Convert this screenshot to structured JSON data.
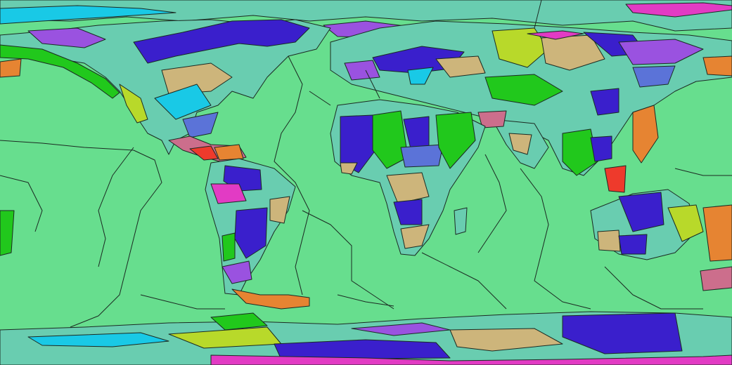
{
  "map": {
    "projection": "equirectangular",
    "palette": {
      "ocean": "#67de8e",
      "teal": "#69cdb0",
      "blue": "#3a1fcc",
      "purple": "#9a52e0",
      "tan": "#cdb57b",
      "green": "#21c81c",
      "yellow": "#b8d92a",
      "cyan": "#19c9e6",
      "pink": "#cc6e8c",
      "orange": "#e68432",
      "magenta": "#e23bc4",
      "red": "#ee3a2c",
      "slate": "#5b73d8"
    },
    "legend_visible": false,
    "labels_visible": false
  }
}
